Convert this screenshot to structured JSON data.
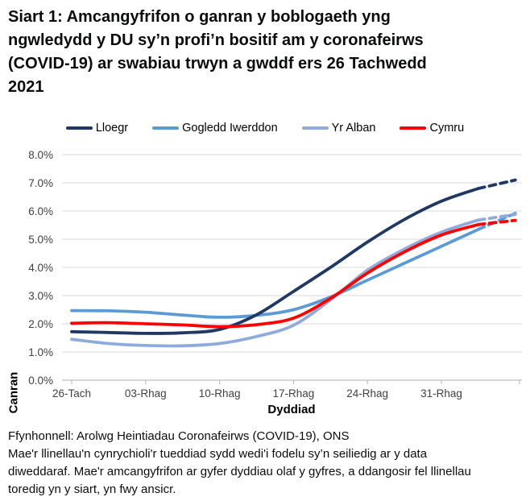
{
  "title": {
    "lines": [
      "Siart 1: Amcangyfrifon o ganran y boblogaeth yng",
      "ngwledydd y DU sy’n profi’n bositif am y coronafeirws",
      "(COVID-19) ar swabiau trwyn a gwddf ers 26 Tachwedd",
      "2021"
    ]
  },
  "legend": {
    "items": [
      {
        "label": "Lloegr",
        "color": "#1f3864"
      },
      {
        "label": "Gogledd Iwerddon",
        "color": "#5b9bd5"
      },
      {
        "label": "Yr Alban",
        "color": "#8faadc"
      },
      {
        "label": "Cymru",
        "color": "#ff0000"
      }
    ]
  },
  "chart_data": {
    "type": "line",
    "xlabel": "Dyddiad",
    "ylabel": "Canran",
    "ylim": [
      0,
      8
    ],
    "y_tick_step": 1.0,
    "y_tick_labels": [
      "0.0%",
      "1.0%",
      "2.0%",
      "3.0%",
      "4.0%",
      "5.0%",
      "6.0%",
      "7.0%",
      "8.0%"
    ],
    "x_tick_labels": [
      "26-Tach",
      "03-Rhag",
      "10-Rhag",
      "17-Rhag",
      "24-Rhag",
      "31-Rhag"
    ],
    "x_tick_days": [
      0,
      7,
      14,
      21,
      28,
      35
    ],
    "x_days": [
      0,
      3.5,
      7,
      10.5,
      14,
      17.5,
      21,
      24.5,
      28,
      31.5,
      35,
      38.5,
      42
    ],
    "dashed_from_day": 38.5,
    "grid": "horizontal-only",
    "legend_position": "top-center",
    "colors": {
      "gridline": "#d9d9d9",
      "axis": "#bfbfbf",
      "tick_label": "#404040",
      "axis_title": "#000000"
    },
    "series": [
      {
        "name": "Lloegr",
        "color": "#1f3864",
        "values": [
          1.72,
          1.69,
          1.66,
          1.68,
          1.8,
          2.32,
          3.15,
          4.0,
          4.9,
          5.7,
          6.35,
          6.8,
          7.1
        ]
      },
      {
        "name": "Gogledd Iwerddon",
        "color": "#5b9bd5",
        "values": [
          2.47,
          2.46,
          2.41,
          2.31,
          2.23,
          2.3,
          2.5,
          2.95,
          3.55,
          4.15,
          4.75,
          5.35,
          5.92
        ]
      },
      {
        "name": "Yr Alban",
        "color": "#8faadc",
        "values": [
          1.45,
          1.3,
          1.23,
          1.22,
          1.3,
          1.55,
          1.95,
          2.85,
          3.9,
          4.65,
          5.25,
          5.68,
          5.88
        ]
      },
      {
        "name": "Cymru",
        "color": "#ff0000",
        "values": [
          2.02,
          2.04,
          2.0,
          1.96,
          1.9,
          1.97,
          2.2,
          2.9,
          3.8,
          4.55,
          5.15,
          5.52,
          5.67
        ]
      }
    ],
    "draw_order": [
      "Gogledd Iwerddon",
      "Yr Alban",
      "Lloegr",
      "Cymru"
    ]
  },
  "footer": {
    "source": "Ffynhonnell: Arolwg Heintiadau Coronafeirws (COVID-19), ONS",
    "note_lines": [
      "Mae'r llinellau'n cynrychioli'r tueddiad sydd wedi'i fodelu sy’n seiliedig ar y data",
      "diweddaraf. Mae'r amcangyfrifon ar gyfer dyddiau olaf y gyfres, a ddangosir fel llinellau",
      "toredig yn y siart, yn fwy ansicr."
    ]
  }
}
